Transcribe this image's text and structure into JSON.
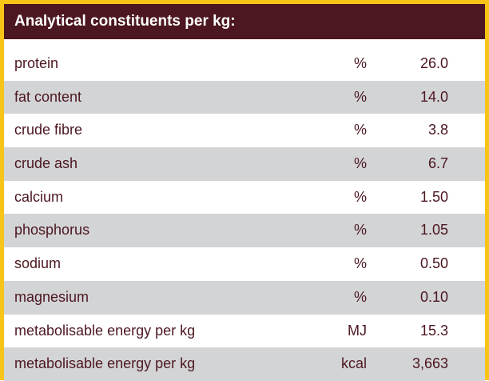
{
  "table": {
    "title": "Analytical constituents per kg:",
    "rows": [
      {
        "label": "protein",
        "unit": "%",
        "value": "26.0"
      },
      {
        "label": "fat content",
        "unit": "%",
        "value": "14.0"
      },
      {
        "label": "crude fibre",
        "unit": "%",
        "value": "3.8"
      },
      {
        "label": "crude ash",
        "unit": "%",
        "value": "6.7"
      },
      {
        "label": "calcium",
        "unit": "%",
        "value": "1.50"
      },
      {
        "label": "phosphorus",
        "unit": "%",
        "value": "1.05"
      },
      {
        "label": "sodium",
        "unit": "%",
        "value": "0.50"
      },
      {
        "label": "magnesium",
        "unit": "%",
        "value": "0.10"
      },
      {
        "label": "metabolisable energy per kg",
        "unit": "MJ",
        "value": "15.3"
      },
      {
        "label": "metabolisable energy per kg",
        "unit": "kcal",
        "value": "3,663"
      }
    ]
  },
  "colors": {
    "border": "#f8c418",
    "header_bg": "#4c1720",
    "text": "#4c1720",
    "shade": "#d3d4d6"
  }
}
